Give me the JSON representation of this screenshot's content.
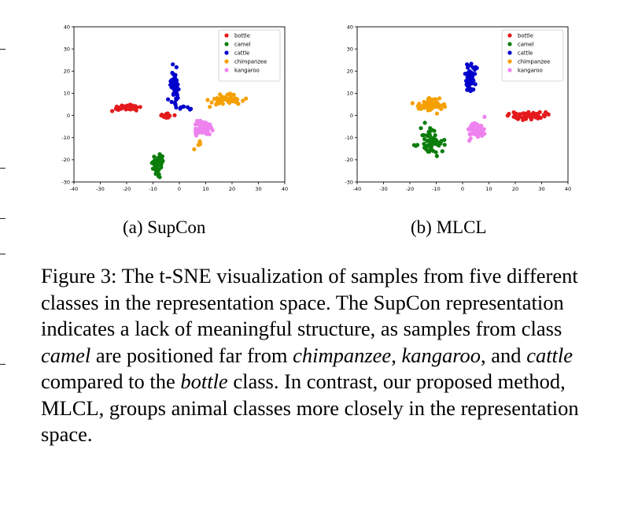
{
  "figure": {
    "subcaption_a": "(a) SupCon",
    "subcaption_b": "(b) MLCL",
    "caption": {
      "label": "Figure 3:",
      "text_1": " The t-SNE visualization of samples from five different classes in the representation space. The SupCon representation indicates a lack of meaningful structure, as samples from class ",
      "italic_1": "camel",
      "text_2": " are positioned far from ",
      "italic_2": "chimpanzee",
      "text_3": ", ",
      "italic_3": "kangaroo",
      "text_4": ", and ",
      "italic_4": "cattle",
      "text_5": " compared to the ",
      "italic_5": "bottle",
      "text_6": " class. In contrast, our proposed method, MLCL, groups animal classes more closely in the representation space."
    }
  },
  "chart_data": [
    {
      "type": "scatter",
      "title": "",
      "xlabel": "",
      "ylabel": "",
      "xlim": [
        -40,
        40
      ],
      "ylim": [
        -30,
        40
      ],
      "xticks": [
        -40,
        -30,
        -20,
        -10,
        0,
        10,
        20,
        30,
        40
      ],
      "yticks": [
        -30,
        -20,
        -10,
        0,
        10,
        20,
        30,
        40
      ],
      "legend_position": "top-right",
      "series": [
        {
          "name": "bottle",
          "color": "#e41a1c",
          "clusters": [
            {
              "center": [
                -20,
                3.5
              ],
              "spread": [
                5,
                1.0
              ],
              "n": 55
            },
            {
              "center": [
                -5,
                0
              ],
              "spread": [
                2.5,
                1.2
              ],
              "n": 20
            }
          ]
        },
        {
          "name": "camel",
          "color": "#0b7d0b",
          "clusters": [
            {
              "center": [
                -8,
                -22
              ],
              "spread": [
                1.8,
                4
              ],
              "n": 45
            }
          ]
        },
        {
          "name": "cattle",
          "color": "#0000cc",
          "clusters": [
            {
              "center": [
                -2,
                14
              ],
              "spread": [
                1.6,
                6
              ],
              "n": 55
            },
            {
              "center": [
                2,
                3
              ],
              "spread": [
                2,
                1.2
              ],
              "n": 8
            }
          ]
        },
        {
          "name": "chimpanzee",
          "color": "#f5a000",
          "clusters": [
            {
              "center": [
                18,
                7
              ],
              "spread": [
                6,
                2
              ],
              "n": 60
            },
            {
              "center": [
                7,
                -13
              ],
              "spread": [
                2,
                2
              ],
              "n": 5
            }
          ]
        },
        {
          "name": "kangaroo",
          "color": "#ee82ee",
          "clusters": [
            {
              "center": [
                9,
                -6
              ],
              "spread": [
                3,
                3
              ],
              "n": 55
            }
          ]
        }
      ]
    },
    {
      "type": "scatter",
      "title": "",
      "xlabel": "",
      "ylabel": "",
      "xlim": [
        -40,
        40
      ],
      "ylim": [
        -30,
        40
      ],
      "xticks": [
        -40,
        -30,
        -20,
        -10,
        0,
        10,
        20,
        30,
        40
      ],
      "yticks": [
        -30,
        -20,
        -10,
        0,
        10,
        20,
        30,
        40
      ],
      "legend_position": "top-right",
      "series": [
        {
          "name": "bottle",
          "color": "#e41a1c",
          "clusters": [
            {
              "center": [
                25,
                0
              ],
              "spread": [
                6,
                1.6
              ],
              "n": 60
            }
          ]
        },
        {
          "name": "camel",
          "color": "#0b7d0b",
          "clusters": [
            {
              "center": [
                -12,
                -12
              ],
              "spread": [
                4,
                5
              ],
              "n": 60
            }
          ]
        },
        {
          "name": "cattle",
          "color": "#0000cc",
          "clusters": [
            {
              "center": [
                3,
                17
              ],
              "spread": [
                1.8,
                6
              ],
              "n": 60
            }
          ]
        },
        {
          "name": "chimpanzee",
          "color": "#f5a000",
          "clusters": [
            {
              "center": [
                -12,
                5
              ],
              "spread": [
                5,
                2.5
              ],
              "n": 60
            }
          ]
        },
        {
          "name": "kangaroo",
          "color": "#ee82ee",
          "clusters": [
            {
              "center": [
                5,
                -6
              ],
              "spread": [
                3,
                4
              ],
              "n": 55
            }
          ]
        }
      ]
    }
  ]
}
